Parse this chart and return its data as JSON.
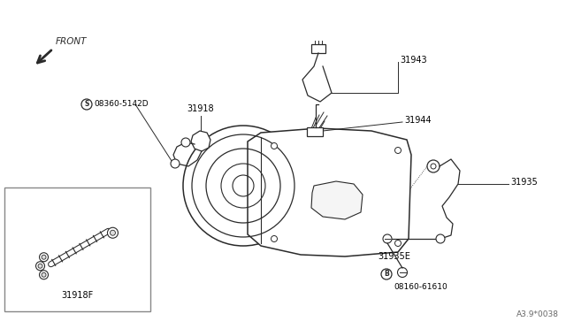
{
  "bg_color": "#ffffff",
  "line_color": "#2a2a2a",
  "label_color": "#000000",
  "fig_width": 6.4,
  "fig_height": 3.72,
  "diagram_code": "A3.9*0038",
  "labels": {
    "front": "FRONT",
    "31918": "31918",
    "08360_5142D": "08360-5142D",
    "31943": "31943",
    "31944": "31944",
    "31935": "31935",
    "31935E": "31935E",
    "08160_61610": "08160-61610",
    "31918F": "31918F"
  },
  "symbol_S": "S",
  "symbol_B": "B"
}
